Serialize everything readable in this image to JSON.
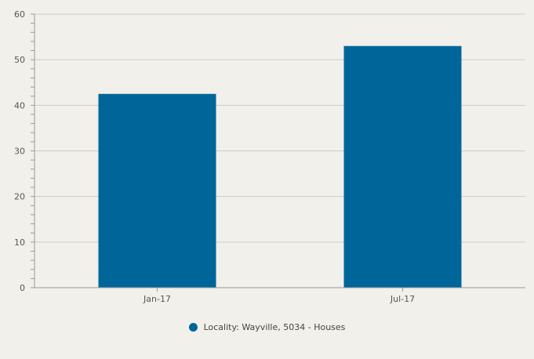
{
  "chart_data": {
    "type": "bar",
    "categories": [
      "Jan-17",
      "Jul-17"
    ],
    "series": [
      {
        "name": "Locality: Wayville, 5034 - Houses",
        "values": [
          42.5,
          53
        ],
        "color": "#006699"
      }
    ],
    "ylim": [
      0,
      60
    ],
    "yticks": [
      0,
      10,
      20,
      30,
      40,
      50,
      60
    ],
    "grid": true,
    "legend_position": "bottom-center",
    "colors": {
      "background": "#f2f0eb",
      "gridline": "#cccccc",
      "axis": "#999999",
      "bar": "#006699"
    }
  }
}
